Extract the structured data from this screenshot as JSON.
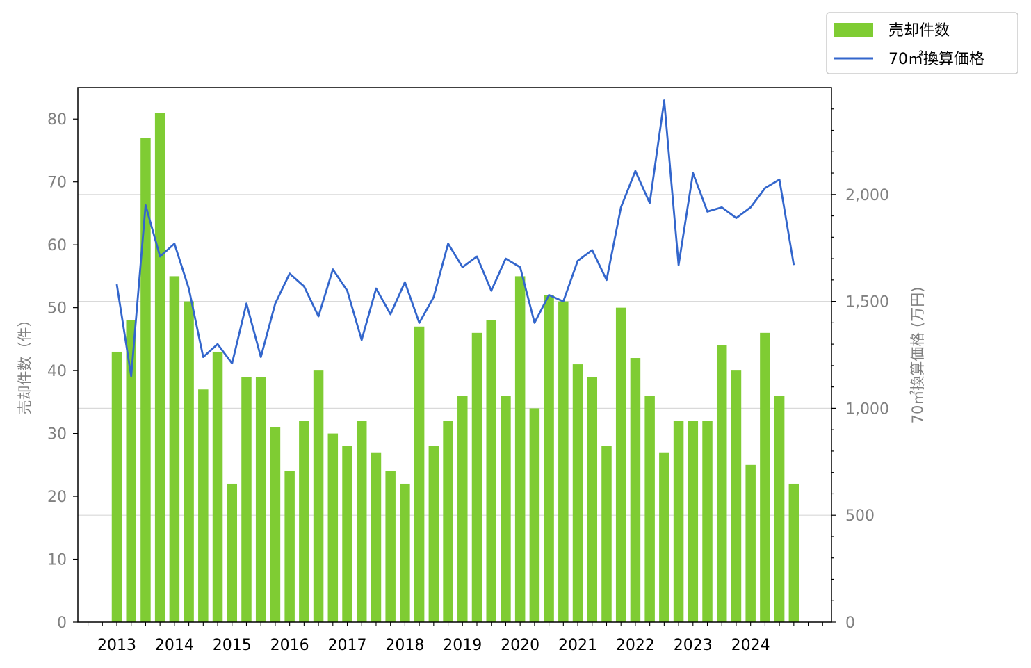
{
  "chart_data": {
    "type": "bar+line",
    "grid": "horizontal lines on right axis",
    "legend_position": "top-right, outside plot",
    "x_tick_labels": [
      "2013",
      "2014",
      "2015",
      "2016",
      "2017",
      "2018",
      "2019",
      "2020",
      "2021",
      "2022",
      "2023",
      "2024"
    ],
    "quarters": [
      "2013Q1",
      "2013Q2",
      "2013Q3",
      "2013Q4",
      "2014Q1",
      "2014Q2",
      "2014Q3",
      "2014Q4",
      "2015Q1",
      "2015Q2",
      "2015Q3",
      "2015Q4",
      "2016Q1",
      "2016Q2",
      "2016Q3",
      "2016Q4",
      "2017Q1",
      "2017Q2",
      "2017Q3",
      "2017Q4",
      "2018Q1",
      "2018Q2",
      "2018Q3",
      "2018Q4",
      "2019Q1",
      "2019Q2",
      "2019Q3",
      "2019Q4",
      "2020Q1",
      "2020Q2",
      "2020Q3",
      "2020Q4",
      "2021Q1",
      "2021Q2",
      "2021Q3",
      "2021Q4",
      "2022Q1",
      "2022Q2",
      "2022Q3",
      "2022Q4",
      "2023Q1",
      "2023Q2",
      "2023Q3",
      "2023Q4",
      "2024Q1",
      "2024Q2",
      "2024Q3",
      "2024Q4"
    ],
    "left_axis": {
      "label": "売却件数（件）",
      "ylim": [
        0,
        85
      ],
      "ticks": [
        0,
        10,
        20,
        30,
        40,
        50,
        60,
        70,
        80
      ],
      "tick_labels": [
        "0",
        "10",
        "20",
        "30",
        "40",
        "50",
        "60",
        "70",
        "80"
      ]
    },
    "right_axis": {
      "label": "70㎡換算価格 (万円)",
      "ylim": [
        0,
        2500
      ],
      "ticks": [
        0,
        500,
        1000,
        1500,
        2000
      ],
      "tick_labels": [
        "0",
        "500",
        "1,000",
        "1,500",
        "2,000"
      ]
    },
    "series": [
      {
        "name": "売却件数",
        "type": "bar",
        "axis": "left",
        "color": "#7fcc33",
        "values": [
          43,
          48,
          77,
          81,
          55,
          51,
          37,
          43,
          22,
          39,
          39,
          31,
          24,
          32,
          40,
          30,
          28,
          32,
          27,
          24,
          22,
          47,
          28,
          32,
          36,
          46,
          48,
          36,
          55,
          34,
          52,
          51,
          41,
          39,
          28,
          50,
          42,
          36,
          27,
          32,
          32,
          32,
          44,
          40,
          25,
          46,
          36,
          22
        ]
      },
      {
        "name": "70㎡換算価格",
        "type": "line",
        "axis": "right",
        "color": "#3366cc",
        "values": [
          1580,
          1150,
          1950,
          1710,
          1770,
          1560,
          1240,
          1300,
          1210,
          1490,
          1240,
          1490,
          1630,
          1570,
          1430,
          1650,
          1550,
          1320,
          1560,
          1440,
          1590,
          1400,
          1520,
          1770,
          1660,
          1710,
          1550,
          1700,
          1660,
          1400,
          1530,
          1500,
          1690,
          1740,
          1600,
          1940,
          2110,
          1960,
          2440,
          1670,
          2100,
          1920,
          1940,
          1890,
          1940,
          2030,
          2070,
          1670
        ]
      }
    ]
  }
}
